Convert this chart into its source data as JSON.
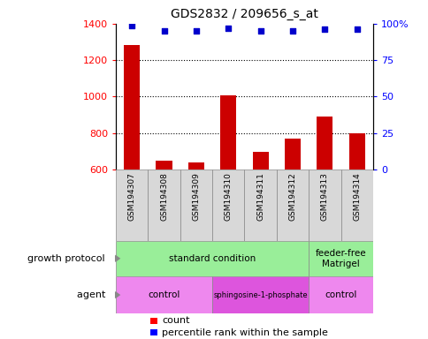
{
  "title": "GDS2832 / 209656_s_at",
  "samples": [
    "GSM194307",
    "GSM194308",
    "GSM194309",
    "GSM194310",
    "GSM194311",
    "GSM194312",
    "GSM194313",
    "GSM194314"
  ],
  "counts": [
    1285,
    650,
    640,
    1005,
    695,
    770,
    890,
    800
  ],
  "percentile_ranks": [
    99,
    95,
    95,
    97,
    95,
    95,
    96,
    96
  ],
  "ylim_left": [
    600,
    1400
  ],
  "ylim_right": [
    0,
    100
  ],
  "yticks_left": [
    600,
    800,
    1000,
    1200,
    1400
  ],
  "yticks_right": [
    0,
    25,
    50,
    75,
    100
  ],
  "ytick_right_labels": [
    "0",
    "25",
    "50",
    "75",
    "100%"
  ],
  "bar_color": "#cc0000",
  "dot_color": "#0000cc",
  "growth_protocol_groups": [
    {
      "label": "standard condition",
      "start": 0,
      "end": 6,
      "color": "#99ee99"
    },
    {
      "label": "feeder-free\nMatrigel",
      "start": 6,
      "end": 8,
      "color": "#99ee99"
    }
  ],
  "agent_groups": [
    {
      "label": "control",
      "start": 0,
      "end": 3,
      "color": "#ee88ee"
    },
    {
      "label": "sphingosine-1-phosphate",
      "start": 3,
      "end": 6,
      "color": "#dd55dd"
    },
    {
      "label": "control",
      "start": 6,
      "end": 8,
      "color": "#ee88ee"
    }
  ],
  "xlabel_growth": "growth protocol",
  "xlabel_agent": "agent",
  "legend_count": "count",
  "legend_percentile": "percentile rank within the sample",
  "sample_box_color": "#d8d8d8",
  "arrow_color": "#888888"
}
